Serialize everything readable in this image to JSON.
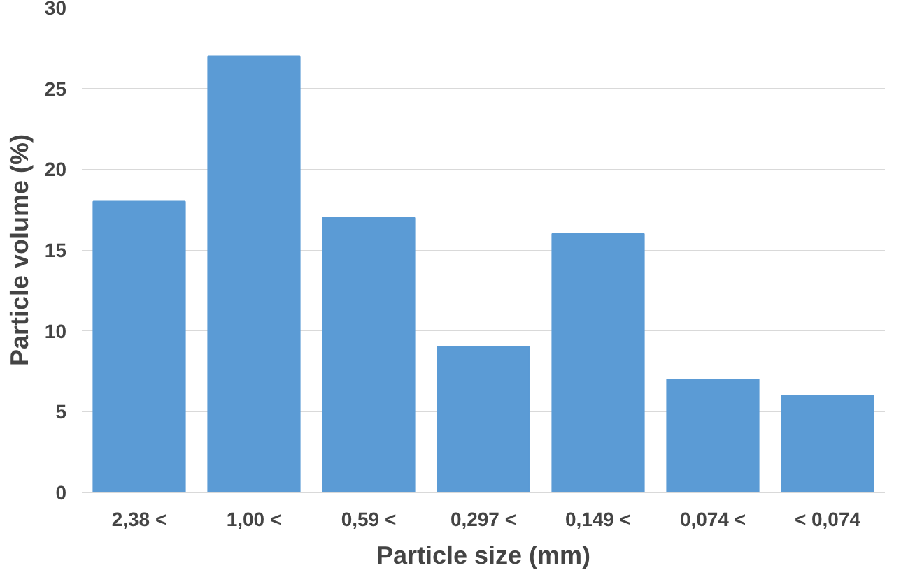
{
  "chart_data": {
    "type": "bar",
    "xlabel": "Particle size (mm)",
    "ylabel": "Particle volume (%)",
    "categories": [
      "2,38 <",
      "1,00 <",
      "0,59 <",
      "0,297 <",
      "0,149 <",
      "0,074 <",
      "< 0,074"
    ],
    "values": [
      18,
      27,
      17,
      9,
      16,
      7,
      6
    ],
    "color": "#5b9bd5",
    "ylim": [
      0,
      30
    ],
    "yticks": [
      0,
      5,
      10,
      15,
      20,
      25,
      30
    ],
    "grid": "y"
  }
}
